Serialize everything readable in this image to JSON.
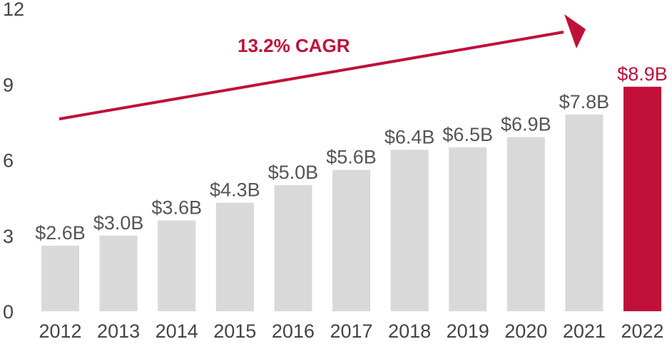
{
  "chart_data": {
    "type": "bar",
    "title": "",
    "xlabel": "",
    "ylabel": "",
    "categories": [
      "2012",
      "2013",
      "2014",
      "2015",
      "2016",
      "2017",
      "2018",
      "2019",
      "2020",
      "2021",
      "2022"
    ],
    "values": [
      2.6,
      3.0,
      3.6,
      4.3,
      5.0,
      5.6,
      6.4,
      6.5,
      6.9,
      7.8,
      8.9
    ],
    "data_labels": [
      "$2.6B",
      "$3.0B",
      "$3.6B",
      "$4.3B",
      "$5.0B",
      "$5.6B",
      "$6.4B",
      "$6.5B",
      "$6.9B",
      "$7.8B",
      "$8.9B"
    ],
    "ylim": [
      0,
      12
    ],
    "yticks": [
      0,
      3,
      6,
      9,
      12
    ],
    "grid": false,
    "highlight_index": 10,
    "annotation": {
      "text": "13.2% CAGR",
      "type": "arrow"
    },
    "colors": {
      "bar": "#d9d9d9",
      "highlight": "#c0103a",
      "label": "#555555",
      "tick": "#444444"
    }
  }
}
